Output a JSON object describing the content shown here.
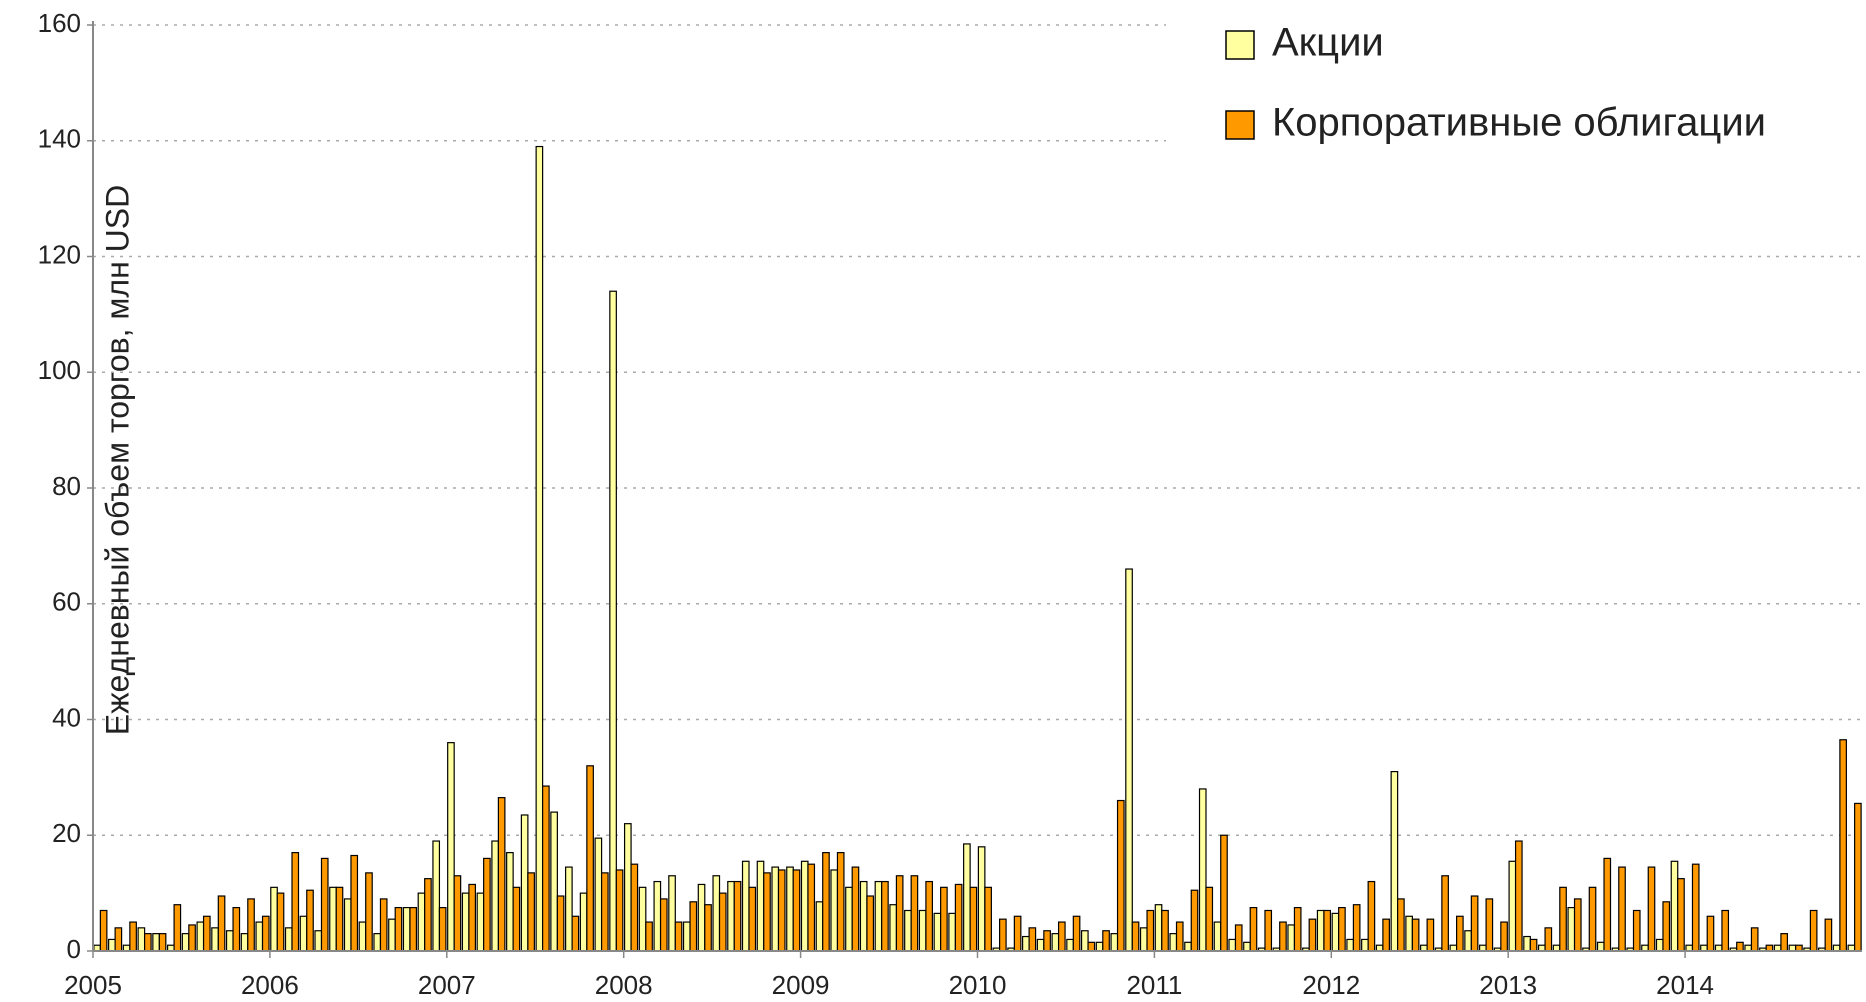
{
  "chart_data": {
    "type": "bar",
    "ylabel": "Ежедневный объем торгов, млн USD",
    "categories": [
      "2005",
      null,
      null,
      null,
      null,
      null,
      null,
      null,
      null,
      null,
      null,
      null,
      "2006",
      null,
      null,
      null,
      null,
      null,
      null,
      null,
      null,
      null,
      null,
      null,
      "2007",
      null,
      null,
      null,
      null,
      null,
      null,
      null,
      null,
      null,
      null,
      null,
      "2008",
      null,
      null,
      null,
      null,
      null,
      null,
      null,
      null,
      null,
      null,
      null,
      "2009",
      null,
      null,
      null,
      null,
      null,
      null,
      null,
      null,
      null,
      null,
      null,
      "2010",
      null,
      null,
      null,
      null,
      null,
      null,
      null,
      null,
      null,
      null,
      null,
      "2011",
      null,
      null,
      null,
      null,
      null,
      null,
      null,
      null,
      null,
      null,
      null,
      "2012",
      null,
      null,
      null,
      null,
      null,
      null,
      null,
      null,
      null,
      null,
      null,
      "2013",
      null,
      null,
      null,
      null,
      null,
      null,
      null,
      null,
      null,
      null,
      null,
      "2014",
      null,
      null,
      null,
      null,
      null,
      null,
      null,
      null,
      null,
      null,
      null
    ],
    "series": [
      {
        "name": "Акции",
        "color": "#ffffa0",
        "values": [
          1,
          2,
          1,
          4,
          3,
          1,
          3,
          5,
          4,
          3.5,
          3,
          5,
          11,
          4,
          6,
          3.5,
          11,
          9,
          5,
          3,
          5.5,
          7.5,
          10,
          19,
          36,
          10,
          10,
          19,
          17,
          23.5,
          139,
          24,
          14.5,
          10,
          19.5,
          114,
          22,
          11,
          12,
          13,
          5,
          11.5,
          13,
          12,
          15.5,
          15.5,
          14.5,
          14.5,
          15.5,
          8.5,
          14,
          11,
          12,
          12,
          8,
          7,
          7,
          6.5,
          6.5,
          18.5,
          18,
          0.5,
          0.5,
          2.5,
          2,
          3,
          2,
          3.5,
          1.5,
          3,
          66,
          4,
          8,
          3,
          1.5,
          28,
          5,
          2,
          1.5,
          0.5,
          0.5,
          4.5,
          0.5,
          7,
          6.5,
          2,
          2,
          1,
          31,
          6,
          1,
          0.5,
          1,
          3.5,
          1,
          0.5,
          15.5,
          2.5,
          1,
          1,
          7.5,
          0.5,
          1.5,
          0.5,
          0.5,
          1,
          2,
          15.5,
          1,
          1,
          1,
          0.5,
          1,
          0.5,
          1,
          1,
          0.5,
          0.5,
          1,
          1
        ]
      },
      {
        "name": "Корпоративные облигации",
        "color": "#ff9900",
        "values": [
          7,
          4,
          5,
          3,
          3,
          8,
          4.5,
          6,
          9.5,
          7.5,
          9,
          6,
          10,
          17,
          10.5,
          16,
          11,
          16.5,
          13.5,
          9,
          7.5,
          7.5,
          12.5,
          7.5,
          13,
          11.5,
          16,
          26.5,
          11,
          13.5,
          28.5,
          9.5,
          6,
          32,
          13.5,
          14,
          15,
          5,
          9,
          5,
          8.5,
          8,
          10,
          12,
          11,
          13.5,
          14,
          14,
          15,
          17,
          17,
          14.5,
          9.5,
          12,
          13,
          13,
          12,
          11,
          11.5,
          11,
          11,
          5.5,
          6,
          4,
          3.5,
          5,
          6,
          1.5,
          3.5,
          26,
          5,
          7,
          7,
          5,
          10.5,
          11,
          20,
          4.5,
          7.5,
          7,
          5,
          7.5,
          5.5,
          7,
          7.5,
          8,
          12,
          5.5,
          9,
          5.5,
          5.5,
          13,
          6,
          9.5,
          9,
          5,
          19,
          2,
          4,
          11,
          9,
          11,
          16,
          14.5,
          7,
          14.5,
          8.5,
          12.5,
          15,
          6,
          7,
          1.5,
          4,
          1,
          3,
          1,
          7,
          5.5,
          36.5,
          25.5
        ]
      }
    ],
    "ylim": [
      0,
      160
    ],
    "yticks": [
      0,
      20,
      40,
      60,
      80,
      100,
      120,
      140,
      160
    ],
    "grid": true,
    "legend": "upper right"
  }
}
